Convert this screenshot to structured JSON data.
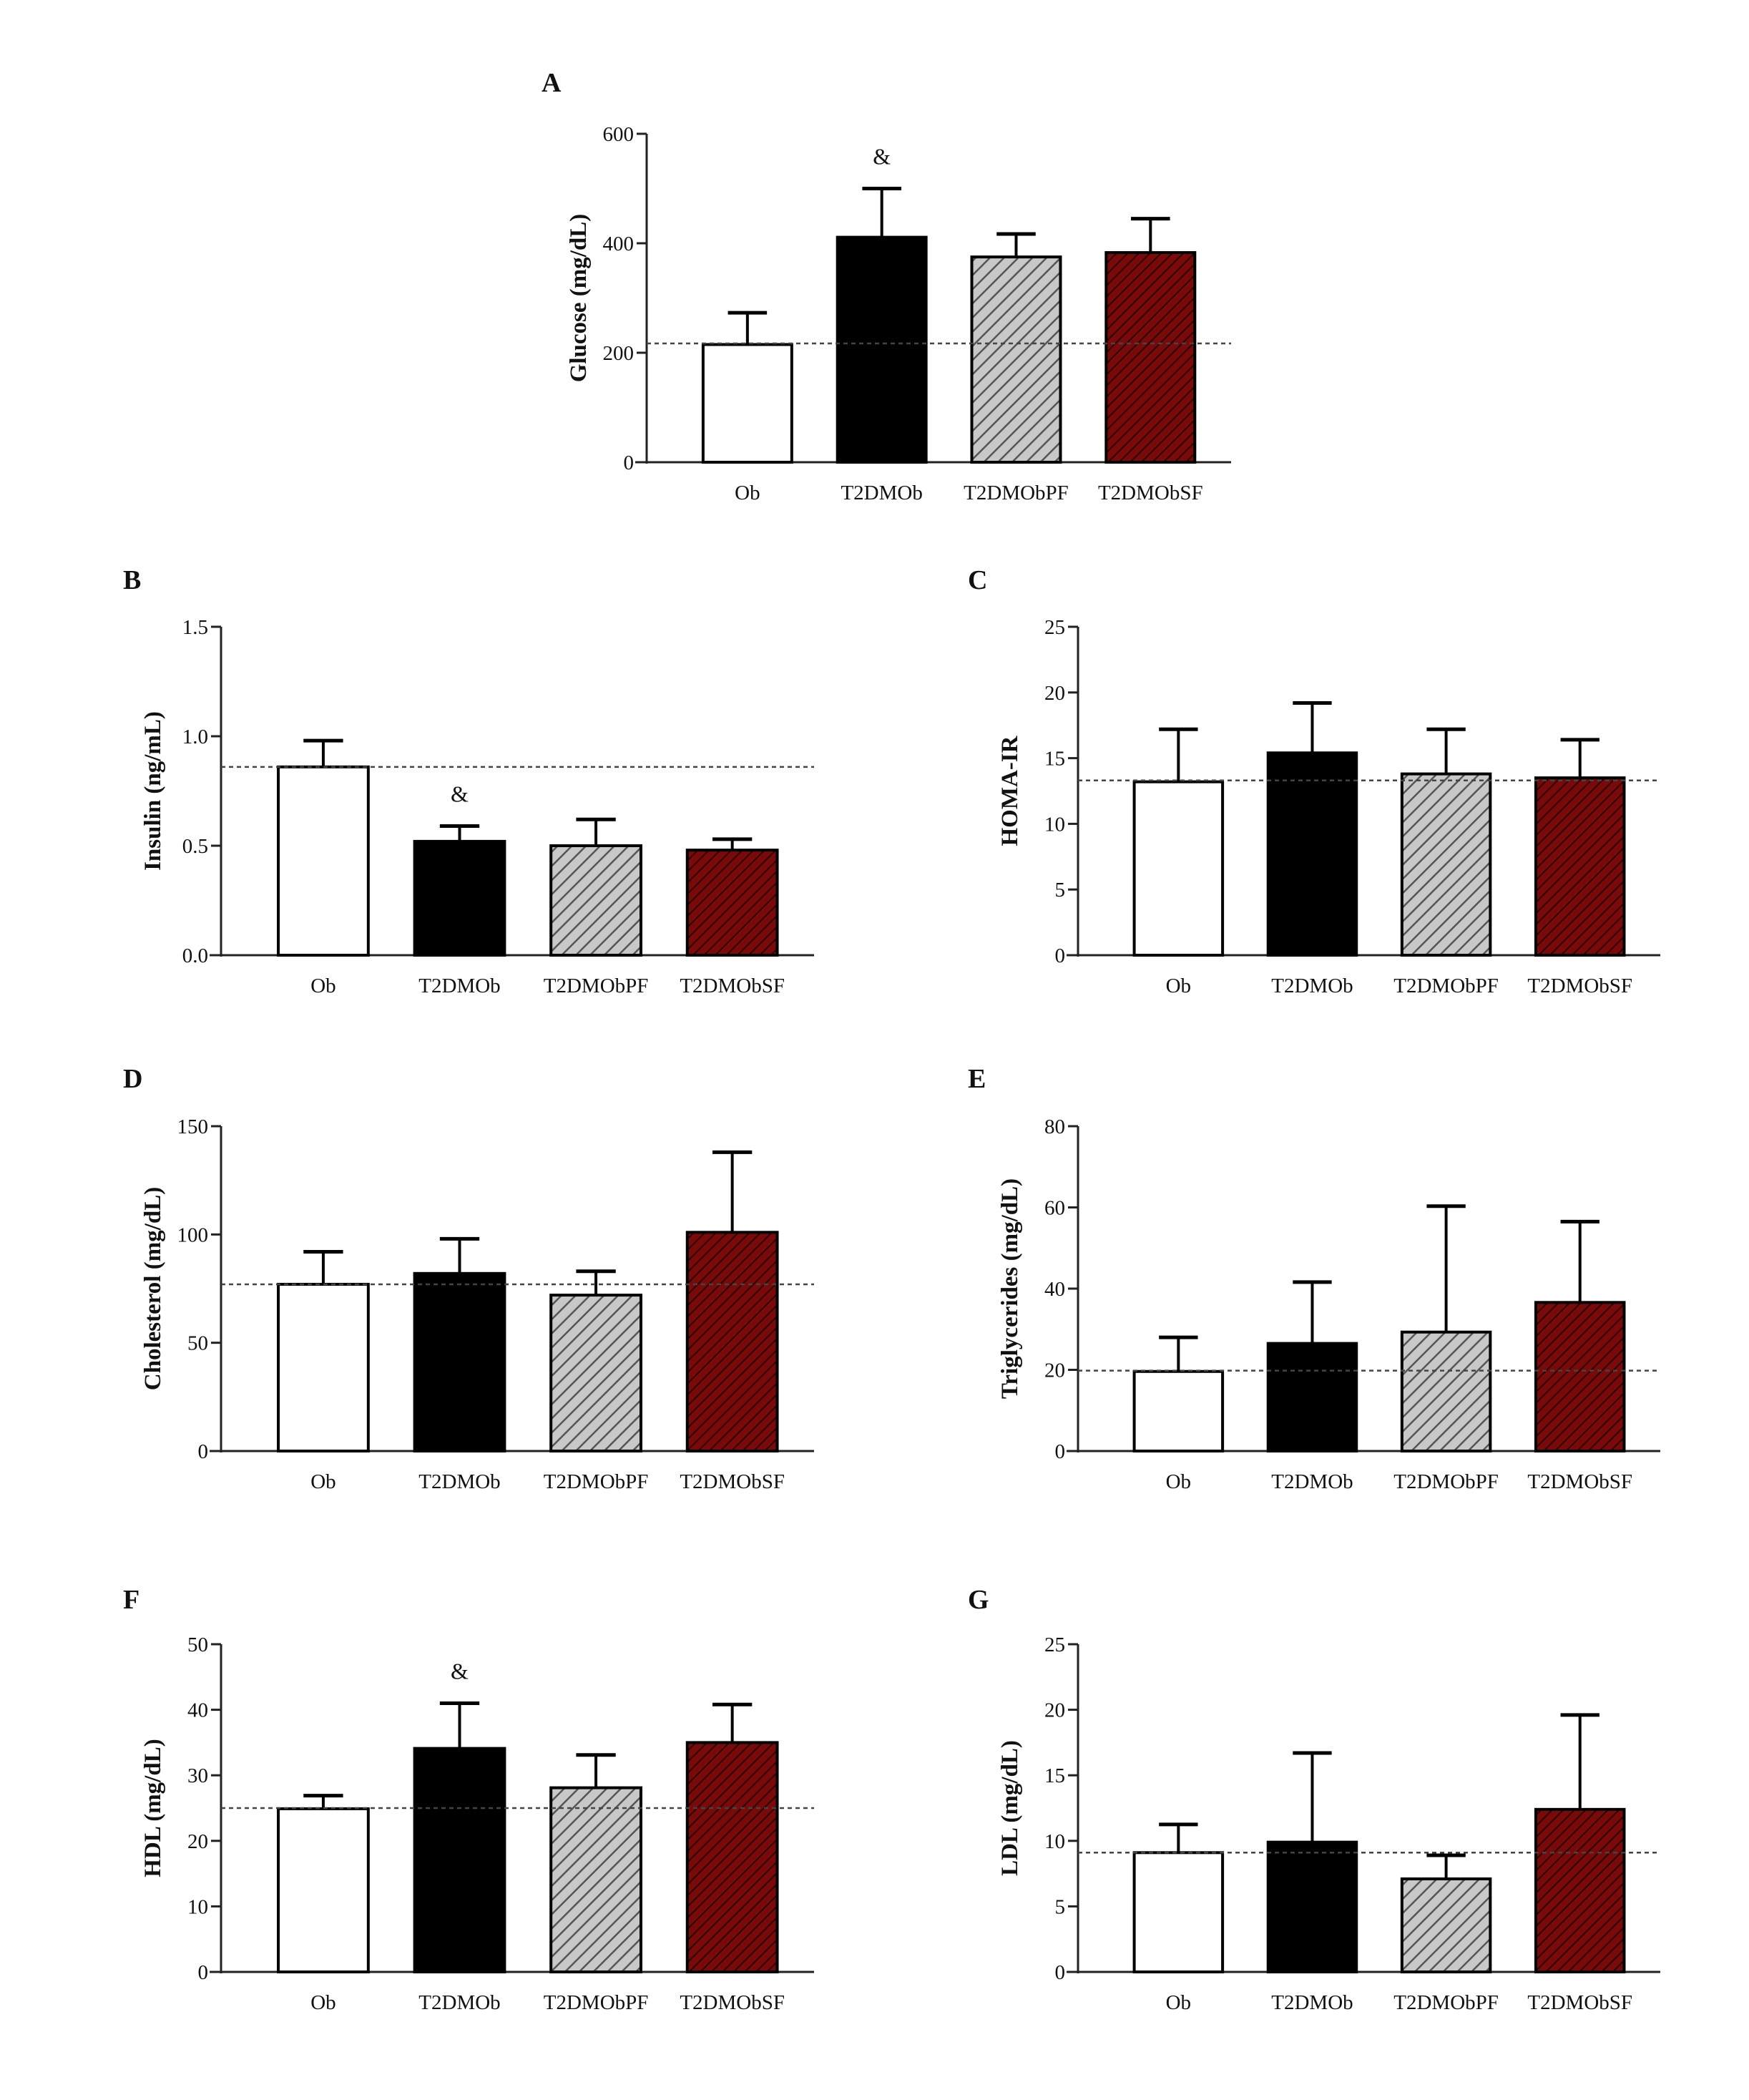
{
  "categories": [
    "Ob",
    "T2DMOb",
    "T2DMObPF",
    "T2DMObSF"
  ],
  "colors": {
    "Ob": "#ffffff",
    "T2DMOb": "#000000",
    "T2DMObPF": "#c8c8c8",
    "T2DMObSF": "#7a0a0a",
    "axis": "#222222",
    "reference_line": "#555555"
  },
  "patterns": [
    "solid",
    "solid",
    "diagonal-hatch",
    "diagonal-hatch"
  ],
  "chart_data": [
    {
      "panel": "A",
      "type": "bar",
      "title": "",
      "xlabel": "",
      "ylabel": "Glucose (mg/dL)",
      "ylim": [
        0,
        600
      ],
      "yticks": [
        0,
        200,
        400,
        600
      ],
      "ytick_labels": [
        "0",
        "200",
        "400",
        "600"
      ],
      "categories": [
        "Ob",
        "T2DMOb",
        "T2DMObPF",
        "T2DMObSF"
      ],
      "values": [
        215,
        411,
        375,
        383
      ],
      "error_upper": [
        273,
        500,
        417,
        445
      ],
      "reference_line": 217,
      "annotations": [
        {
          "category": "T2DMOb",
          "text": "&"
        }
      ],
      "grid": false
    },
    {
      "panel": "B",
      "type": "bar",
      "title": "",
      "xlabel": "",
      "ylabel": "Insulin (ng/mL)",
      "ylim": [
        0,
        1.5
      ],
      "yticks": [
        0,
        0.5,
        1.0,
        1.5
      ],
      "ytick_labels": [
        "0.0",
        "0.5",
        "1.0",
        "1.5"
      ],
      "categories": [
        "Ob",
        "T2DMOb",
        "T2DMObPF",
        "T2DMObSF"
      ],
      "values": [
        0.86,
        0.52,
        0.5,
        0.48
      ],
      "error_upper": [
        0.98,
        0.59,
        0.62,
        0.53
      ],
      "reference_line": 0.86,
      "annotations": [
        {
          "category": "T2DMOb",
          "text": "&"
        }
      ],
      "grid": false
    },
    {
      "panel": "C",
      "type": "bar",
      "title": "",
      "xlabel": "",
      "ylabel": "HOMA-IR",
      "ylim": [
        0,
        25
      ],
      "yticks": [
        0,
        5,
        10,
        15,
        20,
        25
      ],
      "ytick_labels": [
        "0",
        "5",
        "10",
        "15",
        "20",
        "25"
      ],
      "categories": [
        "Ob",
        "T2DMOb",
        "T2DMObPF",
        "T2DMObSF"
      ],
      "values": [
        13.2,
        15.4,
        13.8,
        13.5
      ],
      "error_upper": [
        17.2,
        19.2,
        17.2,
        16.4
      ],
      "reference_line": 13.3,
      "annotations": [],
      "grid": false
    },
    {
      "panel": "D",
      "type": "bar",
      "title": "",
      "xlabel": "",
      "ylabel": "Cholesterol (mg/dL)",
      "ylim": [
        0,
        150
      ],
      "yticks": [
        0,
        50,
        100,
        150
      ],
      "ytick_labels": [
        "0",
        "50",
        "100",
        "150"
      ],
      "categories": [
        "Ob",
        "T2DMOb",
        "T2DMObPF",
        "T2DMObSF"
      ],
      "values": [
        77,
        82,
        72,
        101
      ],
      "error_upper": [
        92,
        98,
        83,
        138
      ],
      "reference_line": 77,
      "annotations": [],
      "grid": false
    },
    {
      "panel": "E",
      "type": "bar",
      "title": "",
      "xlabel": "",
      "ylabel": "Triglycerides (mg/dL)",
      "ylim": [
        0,
        80
      ],
      "yticks": [
        0,
        20,
        40,
        60,
        80
      ],
      "ytick_labels": [
        "0",
        "20",
        "40",
        "60",
        "80"
      ],
      "categories": [
        "Ob",
        "T2DMOb",
        "T2DMObPF",
        "T2DMObSF"
      ],
      "values": [
        19.6,
        26.5,
        29.3,
        36.6
      ],
      "error_upper": [
        28,
        41.6,
        60.3,
        56.5
      ],
      "reference_line": 19.8,
      "annotations": [],
      "grid": false
    },
    {
      "panel": "F",
      "type": "bar",
      "title": "",
      "xlabel": "",
      "ylabel": "HDL (mg/dL)",
      "ylim": [
        0,
        50
      ],
      "yticks": [
        0,
        10,
        20,
        30,
        40,
        50
      ],
      "ytick_labels": [
        "0",
        "10",
        "20",
        "30",
        "40",
        "50"
      ],
      "categories": [
        "Ob",
        "T2DMOb",
        "T2DMObPF",
        "T2DMObSF"
      ],
      "values": [
        24.9,
        34.1,
        28.1,
        35.0
      ],
      "error_upper": [
        26.9,
        41.0,
        33.1,
        40.8
      ],
      "reference_line": 25,
      "annotations": [
        {
          "category": "T2DMOb",
          "text": "&"
        }
      ],
      "grid": false
    },
    {
      "panel": "G",
      "type": "bar",
      "title": "",
      "xlabel": "",
      "ylabel": "LDL (mg/dL)",
      "ylim": [
        0,
        25
      ],
      "yticks": [
        0,
        5,
        10,
        15,
        20,
        25
      ],
      "ytick_labels": [
        "0",
        "5",
        "10",
        "15",
        "20",
        "25"
      ],
      "categories": [
        "Ob",
        "T2DMOb",
        "T2DMObPF",
        "T2DMObSF"
      ],
      "values": [
        9.1,
        9.9,
        7.1,
        12.4
      ],
      "error_upper": [
        11.25,
        16.7,
        8.9,
        19.6
      ],
      "reference_line": 9.1,
      "annotations": [],
      "grid": false
    }
  ]
}
